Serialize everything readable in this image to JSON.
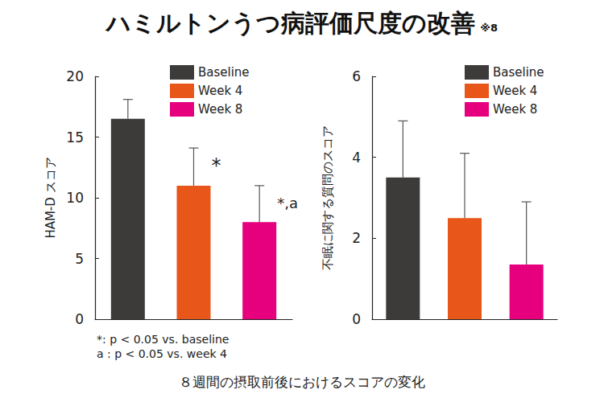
{
  "title": "ハミルトンうつ病評価尺度の改善",
  "title_note": "※8",
  "caption": "８週間の摂取前後におけるスコアの変化",
  "chart_data": [
    {
      "type": "bar",
      "y_label": "HAM-D スコア",
      "ylim": [
        0,
        20
      ],
      "yticks": [
        0,
        5,
        10,
        15,
        20
      ],
      "grid": false,
      "legend": "upper right",
      "tick_labels": "y",
      "series": [
        {
          "name": "Baseline",
          "color": "#3d3a3a",
          "values": [
            16.5
          ],
          "errors": [
            1.6
          ]
        },
        {
          "name": "Week 4",
          "color": "#e8561a",
          "values": [
            11.0
          ],
          "errors": [
            3.1
          ],
          "annotation": "*"
        },
        {
          "name": "Week 8",
          "color": "#e6007e",
          "values": [
            8.0
          ],
          "errors": [
            3.0
          ],
          "annotation": "*,a"
        }
      ],
      "notes": [
        "*: p < 0.05 vs. baseline",
        "a : p < 0.05 vs. week 4"
      ]
    },
    {
      "type": "bar",
      "y_label": "不眠に関する質問のスコア",
      "ylim": [
        0,
        6
      ],
      "yticks": [
        0,
        2,
        4,
        6
      ],
      "grid": false,
      "legend": "upper right",
      "tick_labels": "y",
      "series": [
        {
          "name": "Baseline",
          "color": "#3d3a3a",
          "values": [
            3.5
          ],
          "errors": [
            1.4
          ]
        },
        {
          "name": "Week 4",
          "color": "#e8561a",
          "values": [
            2.5
          ],
          "errors": [
            1.6
          ]
        },
        {
          "name": "Week 8",
          "color": "#e6007e",
          "values": [
            1.35
          ],
          "errors": [
            1.55
          ]
        }
      ]
    }
  ]
}
